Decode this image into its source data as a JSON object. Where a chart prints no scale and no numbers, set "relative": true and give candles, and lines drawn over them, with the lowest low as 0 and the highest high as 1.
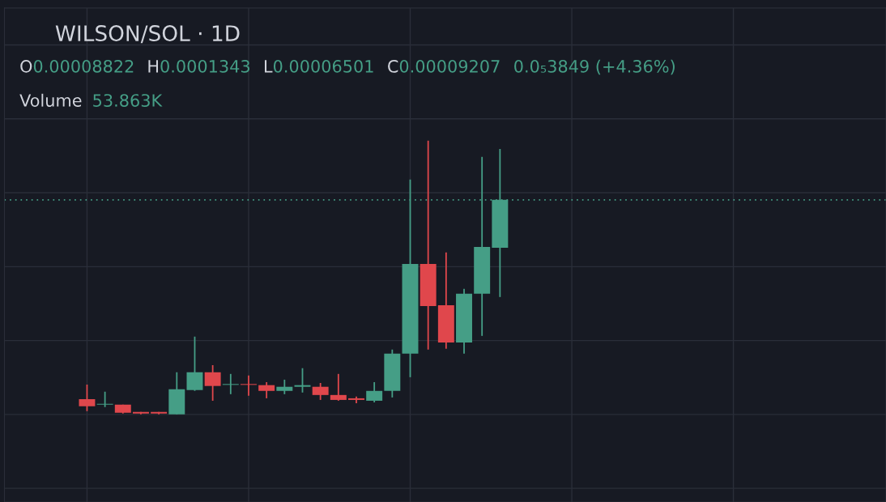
{
  "chart_data": {
    "type": "candlestick",
    "title": "WILSON/SOL · 1D",
    "relative": true,
    "categories": [
      null,
      null,
      null,
      null,
      null,
      null,
      null,
      null,
      null,
      null,
      null,
      null,
      null,
      null,
      null,
      null,
      null,
      null,
      null,
      null,
      null,
      null,
      null,
      null
    ],
    "ohlc": [
      [
        0.056,
        0.109,
        0.012,
        0.03
      ],
      [
        0.036,
        0.083,
        0.027,
        0.038
      ],
      [
        0.036,
        0.036,
        0.003,
        0.006
      ],
      [
        0.009,
        0.009,
        0,
        0.003
      ],
      [
        0.009,
        0.009,
        0,
        0.003
      ],
      [
        0,
        0.154,
        0,
        0.092
      ],
      [
        0.089,
        0.284,
        0.086,
        0.154
      ],
      [
        0.154,
        0.18,
        0.05,
        0.104
      ],
      [
        0.108,
        0.148,
        0.074,
        0.111
      ],
      [
        0.111,
        0.142,
        0.068,
        0.108
      ],
      [
        0.107,
        0.118,
        0.059,
        0.086
      ],
      [
        0.086,
        0.127,
        0.074,
        0.101
      ],
      [
        0.101,
        0.169,
        0.08,
        0.107
      ],
      [
        0.101,
        0.115,
        0.053,
        0.071
      ],
      [
        0.071,
        0.148,
        0.05,
        0.053
      ],
      [
        0.059,
        0.065,
        0.041,
        0.053
      ],
      [
        0.05,
        0.118,
        0.044,
        0.086
      ],
      [
        0.086,
        0.237,
        0.062,
        0.222
      ],
      [
        0.222,
        0.858,
        0.136,
        0.55
      ],
      [
        0.55,
        1,
        0.237,
        0.396
      ],
      [
        0.399,
        0.592,
        0.24,
        0.263
      ],
      [
        0.263,
        0.459,
        0.222,
        0.441
      ],
      [
        0.441,
        0.941,
        0.287,
        0.612
      ],
      [
        0.609,
        0.97,
        0.429,
        0.784
      ]
    ],
    "colors": [
      "#e0474c",
      "#459e86",
      "#e0474c",
      "#e0474c",
      "#e0474c",
      "#459e86",
      "#459e86",
      "#e0474c",
      "#459e86",
      "#e0474c",
      "#e0474c",
      "#459e86",
      "#459e86",
      "#e0474c",
      "#e0474c",
      "#e0474c",
      "#459e86",
      "#459e86",
      "#459e86",
      "#e0474c",
      "#e0474c",
      "#459e86",
      "#459e86",
      "#459e86"
    ],
    "ref_lines": [
      {
        "axis": "y",
        "value": 0.784,
        "label": null,
        "color": "#459e86",
        "line_style": "dotted"
      }
    ],
    "annotations": [
      "O",
      "0.00008822",
      "H",
      "0.0001343",
      "L",
      "0.00006501",
      "C",
      "0.00009207",
      "0.0₅3849 (+4.36%)",
      "Volume",
      "53.863K"
    ],
    "grid": true,
    "legend": false
  }
}
